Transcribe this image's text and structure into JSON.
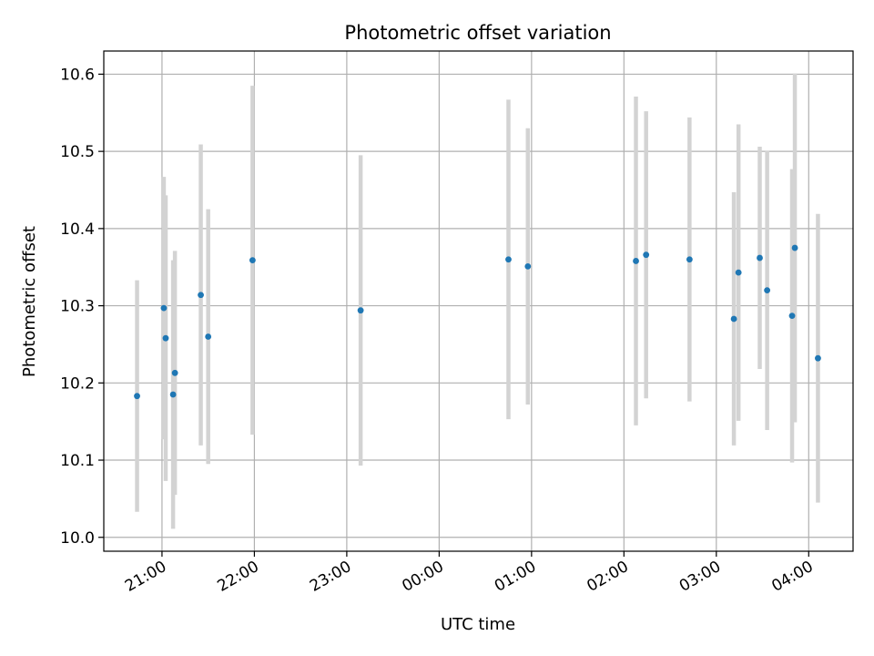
{
  "chart_data": {
    "type": "scatter",
    "title": "Photometric offset variation",
    "xlabel": "UTC time",
    "ylabel": "Photometric offset",
    "xlim_hours": [
      20.37,
      28.48
    ],
    "ylim": [
      9.982,
      10.63
    ],
    "grid": true,
    "x_tick_labels": [
      "21:00",
      "22:00",
      "23:00",
      "00:00",
      "01:00",
      "02:00",
      "03:00",
      "04:00"
    ],
    "y_tick_labels": [
      "10.0",
      "10.1",
      "10.2",
      "10.3",
      "10.4",
      "10.5",
      "10.6"
    ],
    "colors": {
      "marker": "#1f77b4",
      "errorbar": "#d3d3d3",
      "grid": "#b0b0b0"
    },
    "series": [
      {
        "x_hours": [
          20.73,
          21.02,
          21.04,
          21.12,
          21.14,
          21.42,
          21.5,
          21.98,
          23.15,
          24.75,
          24.96,
          26.13,
          26.24,
          26.71,
          27.19,
          27.24,
          27.47,
          27.55,
          27.82,
          27.85,
          28.1
        ],
        "values": [
          10.183,
          10.297,
          10.258,
          10.185,
          10.213,
          10.314,
          10.26,
          10.359,
          10.294,
          10.36,
          10.351,
          10.358,
          10.366,
          10.36,
          10.283,
          10.343,
          10.362,
          10.32,
          10.287,
          10.375,
          10.232
        ],
        "errors": [
          0.15,
          0.17,
          0.185,
          0.174,
          0.158,
          0.195,
          0.165,
          0.226,
          0.201,
          0.207,
          0.179,
          0.213,
          0.186,
          0.184,
          0.164,
          0.192,
          0.144,
          0.181,
          0.19,
          0.226,
          0.187
        ]
      }
    ]
  }
}
